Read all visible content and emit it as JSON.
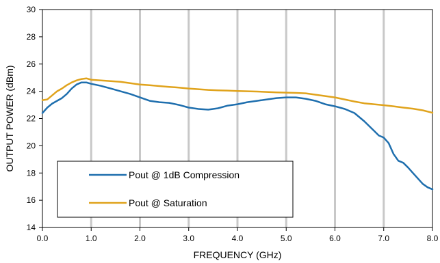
{
  "chart_data": {
    "type": "line",
    "title": "",
    "xlabel": "FREQUENCY (GHz)",
    "ylabel": "OUTPUT POWER (dBm)",
    "xlim": [
      0,
      8
    ],
    "ylim": [
      14,
      30
    ],
    "xticks": [
      "0.0",
      "1.0",
      "2.0",
      "3.0",
      "4.0",
      "5.0",
      "6.0",
      "7.0",
      "8.0"
    ],
    "yticks": [
      "14",
      "16",
      "18",
      "20",
      "22",
      "24",
      "26",
      "28",
      "30"
    ],
    "grid": "vertical",
    "legend_position": "lower-left",
    "colors": {
      "series_1": "#1f6fae",
      "series_2": "#e0a31c",
      "grid": "#c8c8c8"
    },
    "series": [
      {
        "name": "Pout @ 1dB Compression",
        "x": [
          0.0,
          0.1,
          0.2,
          0.3,
          0.4,
          0.5,
          0.6,
          0.7,
          0.8,
          0.9,
          1.0,
          1.2,
          1.4,
          1.6,
          1.8,
          2.0,
          2.2,
          2.4,
          2.6,
          2.8,
          3.0,
          3.2,
          3.4,
          3.6,
          3.8,
          4.0,
          4.2,
          4.4,
          4.6,
          4.8,
          5.0,
          5.2,
          5.4,
          5.6,
          5.8,
          6.0,
          6.2,
          6.4,
          6.6,
          6.8,
          6.9,
          7.0,
          7.1,
          7.2,
          7.3,
          7.4,
          7.5,
          7.6,
          7.7,
          7.8,
          7.9,
          8.0
        ],
        "y": [
          22.4,
          22.8,
          23.1,
          23.3,
          23.5,
          23.8,
          24.2,
          24.5,
          24.65,
          24.65,
          24.55,
          24.4,
          24.2,
          24.0,
          23.8,
          23.55,
          23.3,
          23.2,
          23.15,
          23.0,
          22.8,
          22.7,
          22.65,
          22.75,
          22.95,
          23.05,
          23.2,
          23.3,
          23.4,
          23.5,
          23.55,
          23.55,
          23.45,
          23.3,
          23.05,
          22.9,
          22.7,
          22.4,
          21.8,
          21.1,
          20.75,
          20.6,
          20.2,
          19.4,
          18.9,
          18.75,
          18.4,
          18.0,
          17.6,
          17.2,
          16.95,
          16.8
        ]
      },
      {
        "name": "Pout @ Saturation",
        "x": [
          0.0,
          0.1,
          0.2,
          0.3,
          0.4,
          0.5,
          0.6,
          0.7,
          0.8,
          0.9,
          1.0,
          1.2,
          1.4,
          1.6,
          1.8,
          2.0,
          2.2,
          2.4,
          2.6,
          2.8,
          3.0,
          3.2,
          3.4,
          3.6,
          3.8,
          4.0,
          4.2,
          4.4,
          4.6,
          4.8,
          5.0,
          5.2,
          5.4,
          5.6,
          5.8,
          6.0,
          6.2,
          6.4,
          6.6,
          6.8,
          7.0,
          7.2,
          7.4,
          7.6,
          7.8,
          8.0
        ],
        "y": [
          23.35,
          23.4,
          23.7,
          24.0,
          24.2,
          24.45,
          24.65,
          24.8,
          24.9,
          24.95,
          24.85,
          24.8,
          24.75,
          24.7,
          24.6,
          24.5,
          24.45,
          24.38,
          24.32,
          24.27,
          24.2,
          24.15,
          24.1,
          24.07,
          24.05,
          24.02,
          24.0,
          23.98,
          23.95,
          23.92,
          23.9,
          23.88,
          23.85,
          23.75,
          23.65,
          23.55,
          23.4,
          23.25,
          23.12,
          23.05,
          22.98,
          22.9,
          22.8,
          22.72,
          22.6,
          22.42
        ]
      }
    ]
  }
}
